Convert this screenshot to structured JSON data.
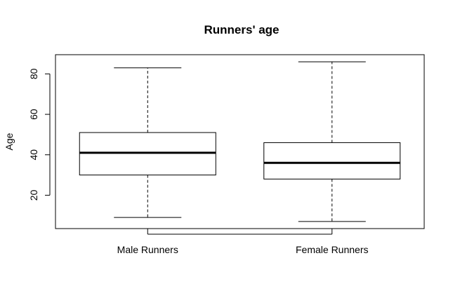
{
  "chart_data": {
    "type": "boxplot",
    "title": "Runners' age",
    "xlabel": "",
    "ylabel": "Age",
    "ylim": [
      3.5,
      89.5
    ],
    "yticks": [
      20,
      40,
      60,
      80
    ],
    "categories": [
      "Male Runners",
      "Female Runners"
    ],
    "series": [
      {
        "category": "Male Runners",
        "min": 9,
        "q1": 30,
        "median": 41,
        "q3": 51,
        "max": 83
      },
      {
        "category": "Female Runners",
        "min": 7,
        "q1": 28,
        "median": 36,
        "q3": 46,
        "max": 86
      }
    ],
    "grid": false,
    "legend": "none"
  }
}
